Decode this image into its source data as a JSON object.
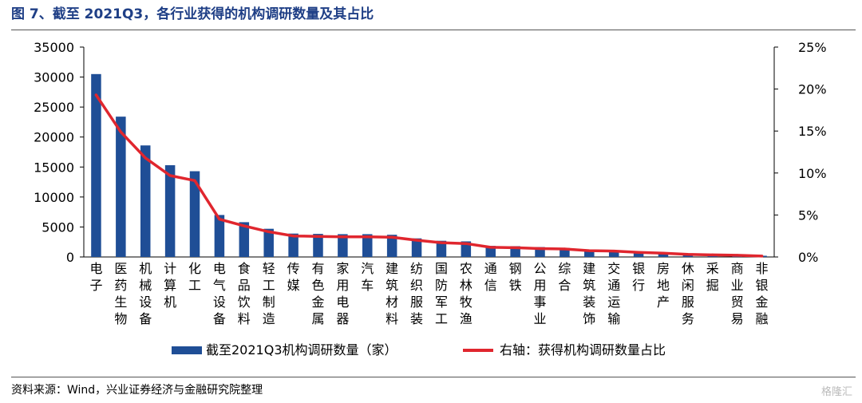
{
  "title": "图 7、截至 2021Q3，各行业获得的机构调研数量及其占比",
  "source": "资料来源：Wind，兴业证券经济与金融研究院整理",
  "watermark": "格隆汇",
  "colors": {
    "bar": "#1f4e96",
    "line": "#e0262e",
    "title": "#1f3f86"
  },
  "chart_data": {
    "type": "bar",
    "categories": [
      "电子",
      "医药生物",
      "机械设备",
      "计算机",
      "化工",
      "电气设备",
      "食品饮料",
      "轻工制造",
      "传媒",
      "有色金属",
      "家用电器",
      "汽车",
      "建筑材料",
      "纺织服装",
      "国防军工",
      "农林牧渔",
      "通信",
      "钢铁",
      "公用事业",
      "综合",
      "建筑装饰",
      "交通运输",
      "银行",
      "房地产",
      "休闲服务",
      "采掘",
      "商业贸易",
      "非银金融"
    ],
    "series": [
      {
        "name": "截至2021Q3机构调研数量（家）",
        "axis": "left",
        "type": "bar",
        "values": [
          30500,
          23400,
          18600,
          15300,
          14300,
          7000,
          5800,
          4700,
          3900,
          3850,
          3800,
          3800,
          3700,
          3100,
          2700,
          2600,
          1850,
          1800,
          1650,
          1500,
          1150,
          1100,
          900,
          700,
          500,
          400,
          300,
          200
        ]
      },
      {
        "name": "右轴：获得机构调研数量占比",
        "axis": "right",
        "type": "line",
        "values": [
          19.3,
          14.9,
          11.8,
          9.7,
          9.1,
          4.5,
          3.7,
          3.0,
          2.5,
          2.45,
          2.4,
          2.4,
          2.35,
          2.0,
          1.7,
          1.6,
          1.15,
          1.1,
          1.0,
          0.95,
          0.75,
          0.7,
          0.55,
          0.45,
          0.3,
          0.25,
          0.2,
          0.1
        ]
      }
    ],
    "left_axis": {
      "ylim": [
        0,
        35000
      ],
      "ticks": [
        "0",
        "5000",
        "10000",
        "15000",
        "20000",
        "25000",
        "30000",
        "35000"
      ]
    },
    "right_axis": {
      "ylim": [
        0,
        25
      ],
      "ticks": [
        "0%",
        "5%",
        "10%",
        "15%",
        "20%",
        "25%"
      ]
    },
    "legend_position": "bottom",
    "grid": false
  }
}
